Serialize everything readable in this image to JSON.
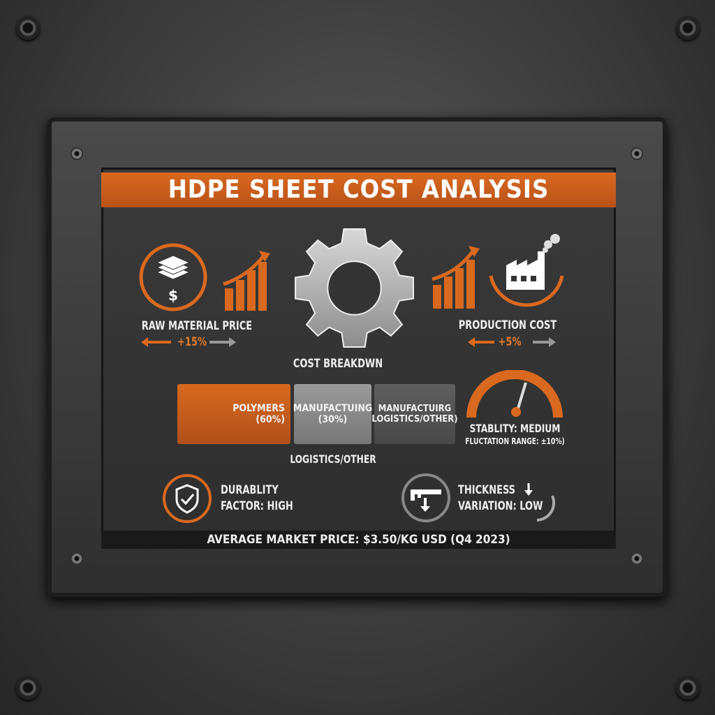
{
  "title": "HDPE SHEET COST ANALYSIS",
  "raw_material": {
    "label": "RAW MATERIAL PRICE",
    "change": "+15%"
  },
  "production": {
    "label": "PRODUCTION COST",
    "change": "+5%"
  },
  "breakdown": {
    "title": "COST BREAKDWN",
    "bars": [
      {
        "label": "POLYMERS",
        "value": "(60%)",
        "color": "#d0621c"
      },
      {
        "label": "MANUFACTUING",
        "value": "(30%)",
        "color": "#8a8a8a"
      },
      {
        "label": "MANUFACTUIRG",
        "value": "LOGISTICS/OTHER)",
        "color": "#555555"
      }
    ],
    "caption": "LOGISTICS/OTHER"
  },
  "stability": {
    "label": "STABLITY: MEDIUM",
    "range": "FLUCTATION RANGE: ±10%)"
  },
  "durability": {
    "line1": "DURABLITY",
    "line2": "FACTOR: HIGH"
  },
  "thickness": {
    "line1": "THICKNESS",
    "line2": "VARIATION:  LOW"
  },
  "footer": "AVERAGE MARKET PRICE: $3.50/KG USD (Q4 2023)",
  "colors": {
    "accent": "#d9691f",
    "panel": "#333333"
  }
}
